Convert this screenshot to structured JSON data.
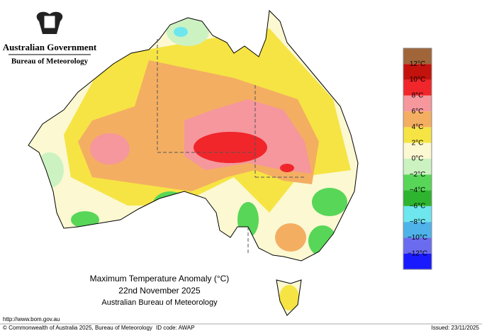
{
  "header": {
    "agency": "Australian Government",
    "bureau": "Bureau of Meteorology"
  },
  "map": {
    "title": "Maximum Temperature Anomaly (°C)",
    "date": "22nd November 2025",
    "source": "Australian Bureau of Meteorology"
  },
  "legend": {
    "colors": [
      "#a0663a",
      "#c4120c",
      "#f0262b",
      "#f5979c",
      "#f4ae62",
      "#f6e444",
      "#fbf8d2",
      "#ccf2c2",
      "#58d658",
      "#2fb42f",
      "#6ee6ee",
      "#4fb3ea",
      "#6b6bf0",
      "#1a1aff"
    ],
    "labels": [
      "12°C",
      "10°C",
      "8°C",
      "6°C",
      "4°C",
      "2°C",
      "0°C",
      "−2°C",
      "−4°C",
      "−6°C",
      "−8°C",
      "−10°C",
      "−12°C"
    ]
  },
  "footer": {
    "url": "http://www.bom.gov.au",
    "copyright": "© Commonwealth of Australia 2025, Bureau of Meteorology",
    "id_code": "ID code: AWAP",
    "issued": "Issued: 23/11/2025"
  }
}
